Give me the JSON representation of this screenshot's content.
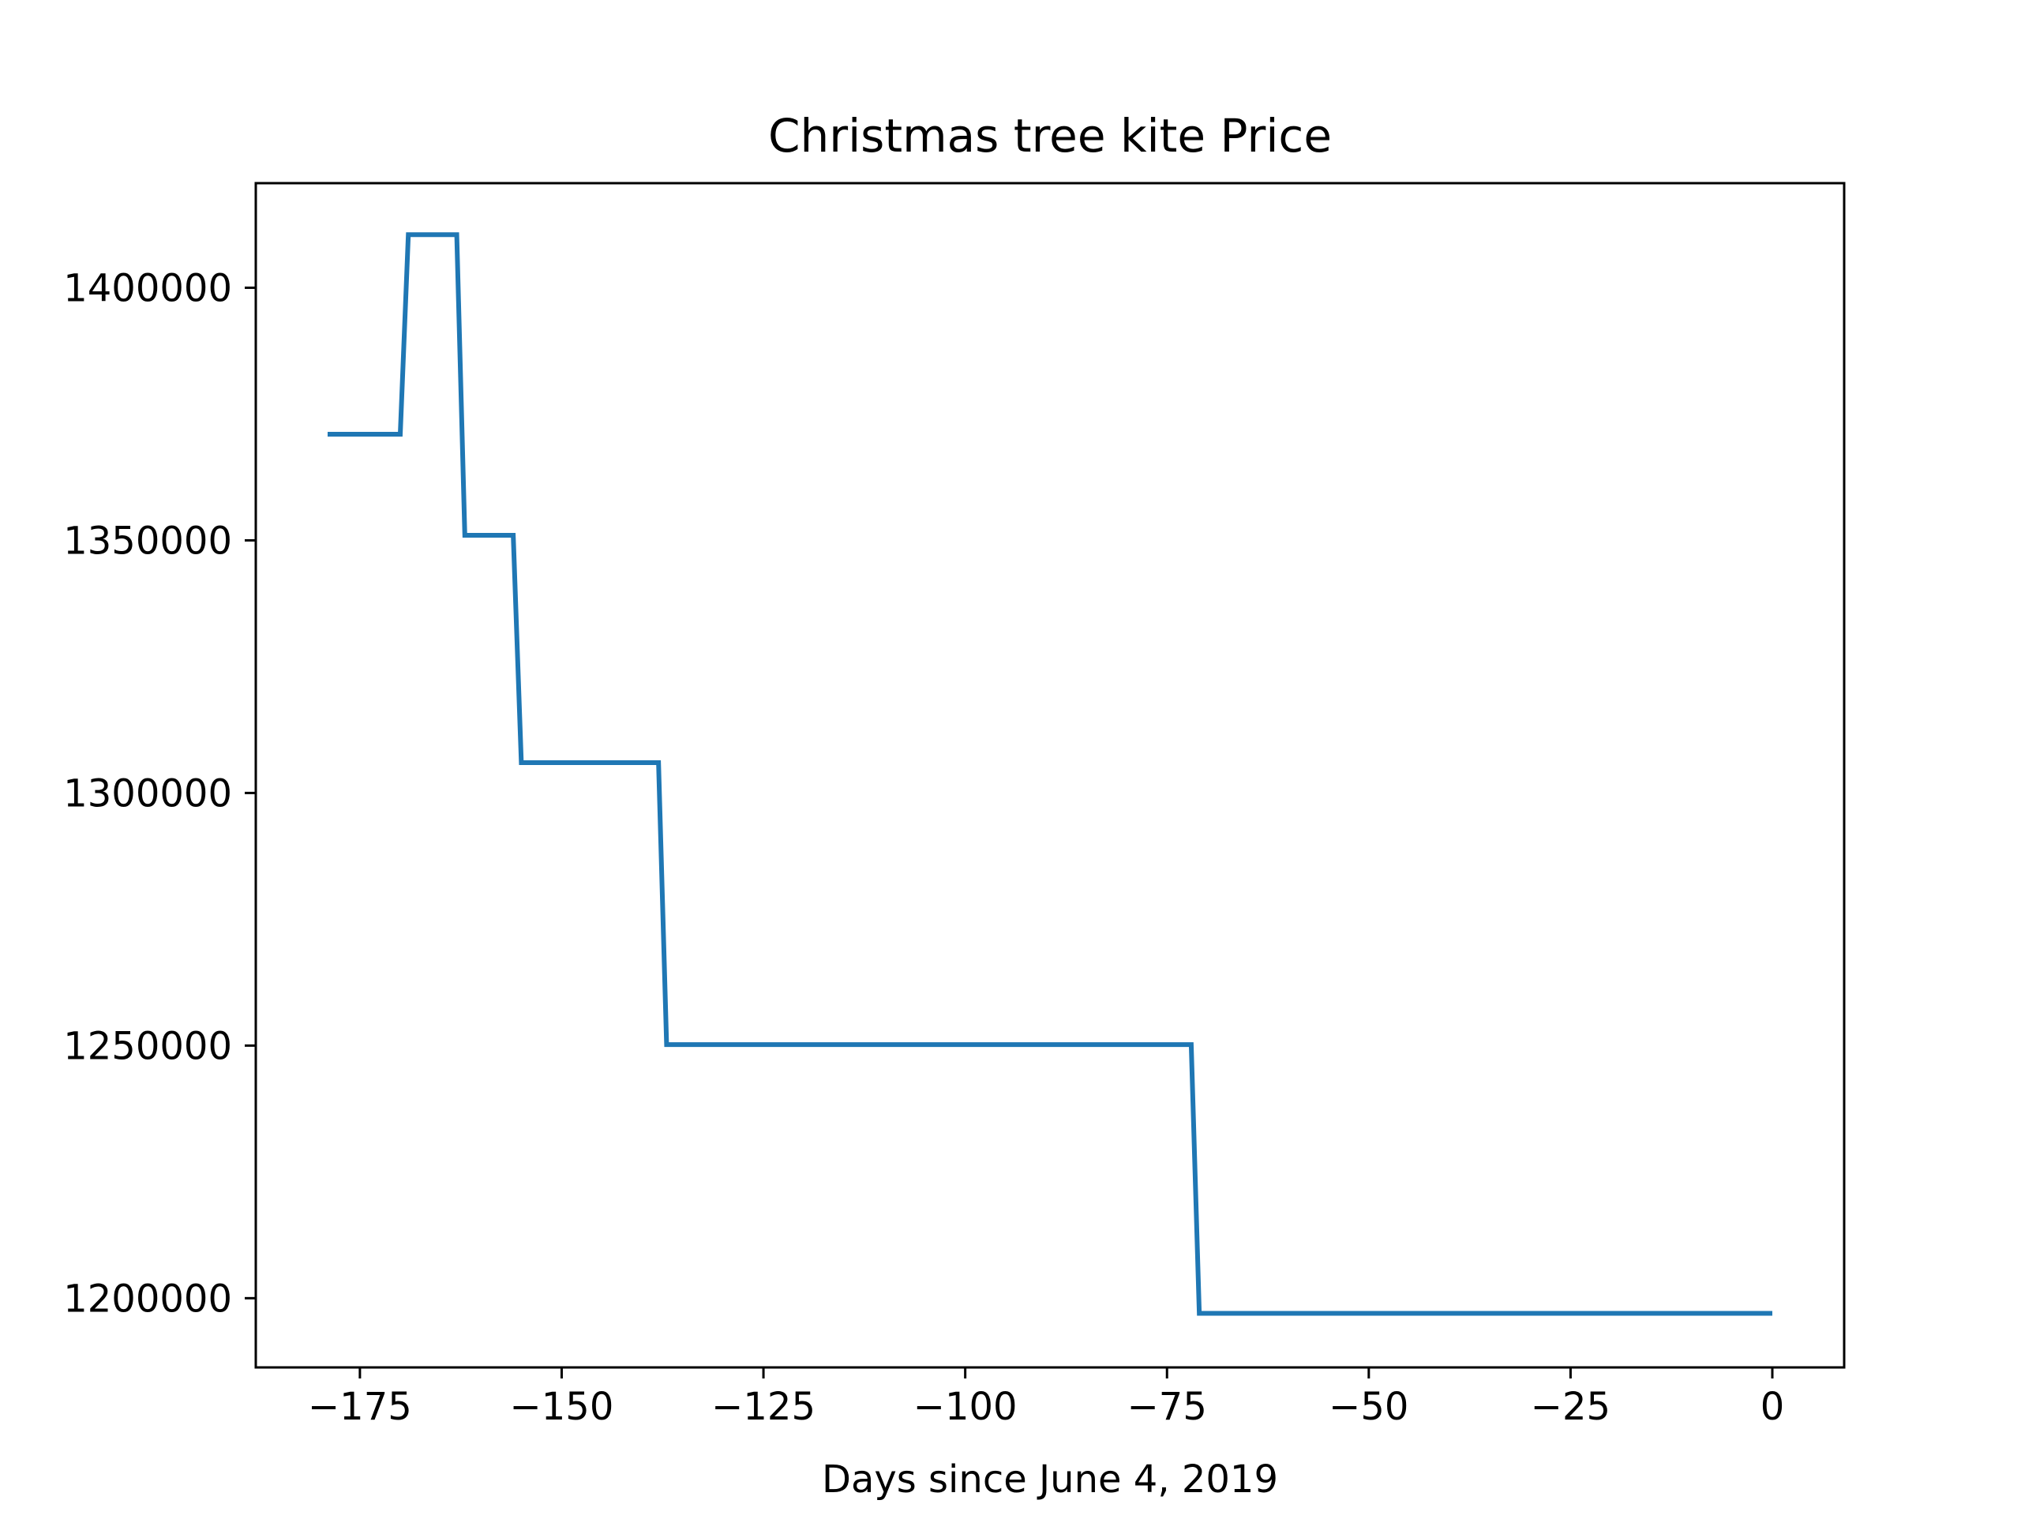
{
  "chart_data": {
    "type": "line",
    "title": "Christmas tree kite Price",
    "xlabel": "Days since June 4, 2019",
    "ylabel": "",
    "drawstyle": "steps",
    "xlim": [
      -187.9,
      8.9
    ],
    "ylim": [
      1186300,
      1420700
    ],
    "xticks": [
      -175,
      -150,
      -125,
      -100,
      -75,
      -50,
      -25,
      0
    ],
    "yticks": [
      1200000,
      1250000,
      1300000,
      1350000,
      1400000
    ],
    "grid": false,
    "legend": "none",
    "line_color": "#1f77b4",
    "series": [
      {
        "points": [
          {
            "x": -179,
            "y": 1371000
          },
          {
            "x": -170,
            "y": 1371000
          },
          {
            "x": -169,
            "y": 1410500
          },
          {
            "x": -163,
            "y": 1410500
          },
          {
            "x": -162,
            "y": 1351000
          },
          {
            "x": -156,
            "y": 1351000
          },
          {
            "x": -155,
            "y": 1306000
          },
          {
            "x": -138,
            "y": 1306000
          },
          {
            "x": -137,
            "y": 1250200
          },
          {
            "x": -72,
            "y": 1250200
          },
          {
            "x": -71,
            "y": 1197000
          },
          {
            "x": 0,
            "y": 1197000
          }
        ]
      }
    ]
  }
}
